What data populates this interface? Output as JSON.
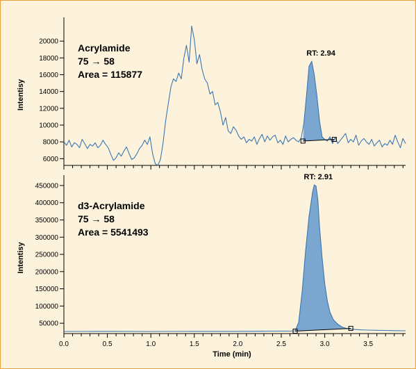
{
  "chart_data": [
    {
      "type": "line",
      "title": "",
      "ylabel": "Intentisy",
      "xlabel": "",
      "xlim": [
        0.0,
        3.93
      ],
      "ylim": [
        5200,
        22000
      ],
      "yticks": [
        6000,
        8000,
        10000,
        12000,
        14000,
        16000,
        18000,
        20000
      ],
      "grid": false,
      "line_color": "#3b76b0",
      "peak_fill": "#7aa6cf",
      "annotation": [
        "Acrylamide",
        "75 → 58",
        "Area = 115877"
      ],
      "peak": {
        "label": "RT: 2.94",
        "rt": 2.94,
        "start": [
          2.75,
          8100
        ],
        "end": [
          3.11,
          8300
        ]
      },
      "series": [
        {
          "x": [
            0.0,
            0.03,
            0.06,
            0.09,
            0.12,
            0.15,
            0.18,
            0.21,
            0.24,
            0.27,
            0.3,
            0.33,
            0.36,
            0.39,
            0.42,
            0.45,
            0.48,
            0.51,
            0.54,
            0.57,
            0.6,
            0.63,
            0.66,
            0.69,
            0.72,
            0.75,
            0.78,
            0.81,
            0.84,
            0.87,
            0.9,
            0.93,
            0.96,
            0.99,
            1.02,
            1.05,
            1.08,
            1.11,
            1.14,
            1.17,
            1.2,
            1.23,
            1.26,
            1.29,
            1.32,
            1.35,
            1.38,
            1.41,
            1.44,
            1.47,
            1.5,
            1.53,
            1.56,
            1.59,
            1.62,
            1.65,
            1.68,
            1.71,
            1.74,
            1.77,
            1.8,
            1.83,
            1.86,
            1.89,
            1.92,
            1.95,
            1.98,
            2.01,
            2.04,
            2.07,
            2.1,
            2.13,
            2.16,
            2.19,
            2.22,
            2.25,
            2.28,
            2.31,
            2.34,
            2.37,
            2.4,
            2.43,
            2.46,
            2.49,
            2.52,
            2.55,
            2.58,
            2.61,
            2.64,
            2.67,
            2.7,
            2.73,
            2.76,
            2.79,
            2.82,
            2.85,
            2.88,
            2.91,
            2.94,
            2.97,
            3.0,
            3.03,
            3.06,
            3.09,
            3.12,
            3.15,
            3.18,
            3.21,
            3.24,
            3.27,
            3.3,
            3.33,
            3.36,
            3.39,
            3.42,
            3.45,
            3.48,
            3.51,
            3.54,
            3.57,
            3.6,
            3.63,
            3.66,
            3.69,
            3.72,
            3.75,
            3.78,
            3.81,
            3.84,
            3.87,
            3.9,
            3.93
          ],
          "y": [
            8000,
            7600,
            8200,
            7400,
            7900,
            7700,
            7300,
            8300,
            7800,
            7200,
            7700,
            7500,
            7900,
            7300,
            7600,
            8200,
            7700,
            7300,
            6500,
            5800,
            6100,
            6700,
            6300,
            6900,
            7400,
            6600,
            5900,
            6100,
            6600,
            7200,
            7600,
            8200,
            7700,
            8600,
            6600,
            5400,
            5200,
            5900,
            7800,
            10500,
            12500,
            14500,
            15500,
            15200,
            16200,
            15500,
            18000,
            19500,
            17500,
            21800,
            20200,
            17300,
            18400,
            16600,
            15500,
            15000,
            13700,
            14000,
            12400,
            12700,
            11600,
            10000,
            10900,
            9300,
            9000,
            9800,
            9400,
            8700,
            8300,
            8600,
            7900,
            8300,
            8100,
            8600,
            7700,
            8400,
            8900,
            8000,
            8700,
            8200,
            8600,
            8800,
            7900,
            8200,
            7700,
            8700,
            8000,
            8300,
            8500,
            8200,
            8000,
            8500,
            10200,
            13500,
            17000,
            17600,
            16000,
            13500,
            10500,
            8600,
            8300,
            8100,
            8600,
            7800,
            8500,
            7800,
            8200,
            8600,
            9000,
            7900,
            8300,
            8000,
            8800,
            7600,
            8100,
            8400,
            8000,
            7700,
            8300,
            7500,
            7900,
            8200,
            7400,
            7800,
            7600,
            8200,
            7700,
            8800,
            8000,
            7300,
            8400,
            7800
          ]
        }
      ]
    },
    {
      "type": "line",
      "title": "",
      "ylabel": "Intentisy",
      "xlabel": "Time (min)",
      "xlim": [
        0.0,
        3.93
      ],
      "ylim": [
        20000,
        460000
      ],
      "yticks": [
        50000,
        100000,
        150000,
        200000,
        250000,
        300000,
        350000,
        400000,
        450000
      ],
      "xticks": [
        0.0,
        0.5,
        1.0,
        1.5,
        2.0,
        2.5,
        3.0,
        3.5
      ],
      "xtick_labels": [
        "0.0",
        "0.5",
        "1.0",
        "1.5",
        "2.0",
        "2.5",
        "3.0",
        "3.5"
      ],
      "grid": false,
      "line_color": "#3b76b0",
      "peak_fill": "#7aa6cf",
      "annotation": [
        "d3-Acrylamide",
        "75 → 58",
        "Area = 5541493"
      ],
      "peak": {
        "label": "RT: 2.91",
        "rt": 2.91,
        "start": [
          2.66,
          27000
        ],
        "end": [
          3.3,
          35000
        ]
      },
      "series": [
        {
          "x": [
            0.0,
            0.5,
            1.0,
            1.5,
            2.0,
            2.5,
            2.6,
            2.66,
            2.7,
            2.74,
            2.78,
            2.82,
            2.86,
            2.88,
            2.9,
            2.92,
            2.94,
            2.97,
            3.0,
            3.03,
            3.06,
            3.1,
            3.15,
            3.2,
            3.25,
            3.3,
            3.4,
            3.5,
            3.6,
            3.7,
            3.8,
            3.93
          ],
          "y": [
            26000,
            26500,
            26000,
            26500,
            26500,
            27000,
            27000,
            28000,
            52000,
            140000,
            260000,
            360000,
            430000,
            452000,
            448000,
            410000,
            330000,
            240000,
            165000,
            115000,
            82000,
            60000,
            47000,
            39000,
            35000,
            33000,
            31000,
            30000,
            29500,
            29000,
            28500,
            28000
          ]
        }
      ]
    }
  ]
}
